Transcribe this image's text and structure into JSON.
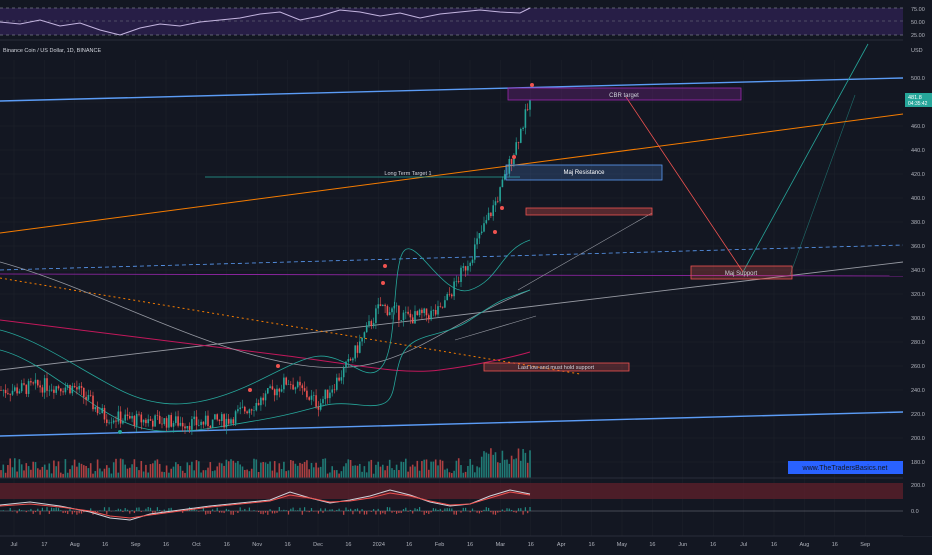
{
  "symbol": {
    "title": "Binance Coin / US Dollar, 1D, BINANCE",
    "currency": "USD",
    "last_price": "481.8",
    "countdown": "04:35:42",
    "watermark": "www.TheTradersBasics.net"
  },
  "rsi_pane": {
    "levels": [
      "75.00",
      "50.00",
      "25.00"
    ]
  },
  "macd_pane": {
    "levels": [
      "200.0",
      "0.0"
    ]
  },
  "annotations": {
    "cbr_target": "CBR target",
    "maj_resistance": "Maj Resistance",
    "long_term_target": "Long Term Target 1",
    "maj_support": "Maj Support",
    "last_low": "Last low and must hold support"
  },
  "colors": {
    "background": "#131722",
    "up": "#26a69a",
    "down": "#ef5350",
    "trendline_blue": "#5b9cf6",
    "trendline_orange": "#f57c00",
    "box_purple": "#9c27b0",
    "watermark_blue": "#2962ff"
  },
  "chart_data": {
    "type": "candlestick",
    "x_ticks": [
      "Jul",
      "17",
      "Aug",
      "16",
      "Sep",
      "16",
      "Oct",
      "16",
      "Nov",
      "16",
      "Dec",
      "16",
      "2024",
      "16",
      "Feb",
      "16",
      "Mar",
      "16",
      "Apr",
      "16",
      "May",
      "16",
      "Jun",
      "16",
      "Jul",
      "16",
      "Aug",
      "16",
      "Sep"
    ],
    "y_ticks": [
      "500.0",
      "480.0",
      "460.0",
      "440.0",
      "420.0",
      "400.0",
      "380.0",
      "360.0",
      "340.0",
      "320.0",
      "300.0",
      "280.0",
      "260.0",
      "240.0",
      "220.0",
      "200.0",
      "180.0"
    ],
    "ylim": [
      175,
      515
    ],
    "price_points": [
      [
        "Jul",
        240
      ],
      [
        "Jul 17",
        244
      ],
      [
        "Aug",
        242
      ],
      [
        "Aug 16",
        218
      ],
      [
        "Sep",
        215
      ],
      [
        "Sep 16",
        214
      ],
      [
        "Oct",
        212
      ],
      [
        "Oct 16",
        215
      ],
      [
        "Nov",
        230
      ],
      [
        "Nov 16",
        248
      ],
      [
        "Dec",
        228
      ],
      [
        "Dec 16",
        262
      ],
      [
        "Jan",
        310
      ],
      [
        "2024 16",
        300
      ],
      [
        "Feb",
        305
      ],
      [
        "Feb 16",
        350
      ],
      [
        "Mar",
        405
      ],
      [
        "Mar 6",
        482
      ]
    ],
    "grid": true
  }
}
